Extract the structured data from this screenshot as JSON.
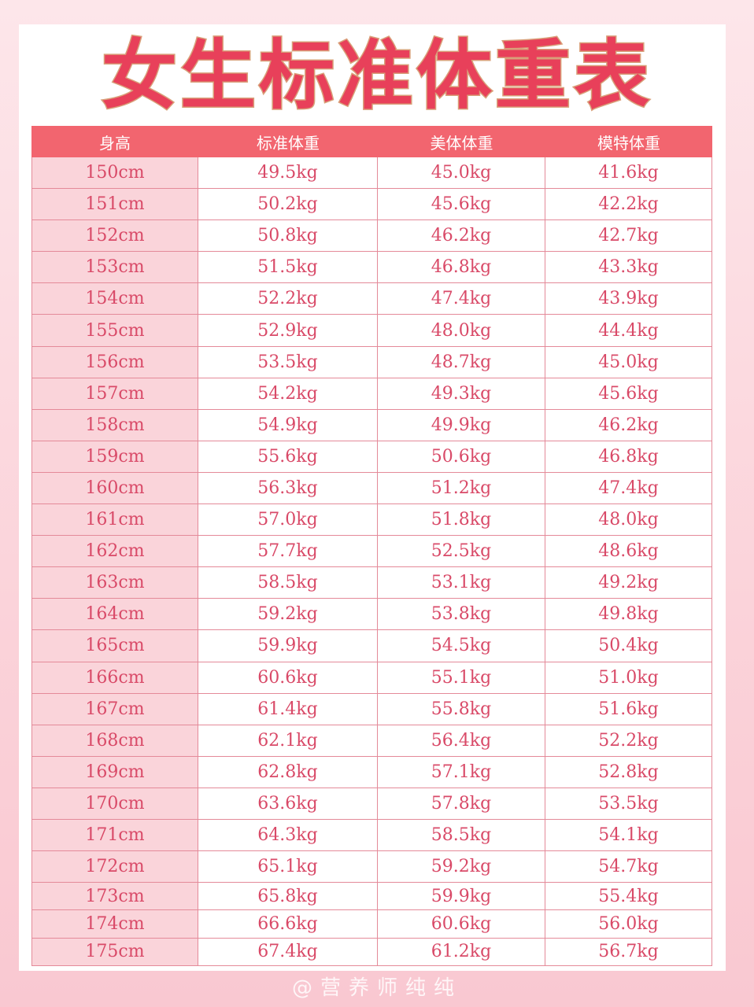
{
  "title": "女生标准体重表",
  "table": {
    "headers": [
      "身高",
      "标准体重",
      "美体体重",
      "模特体重"
    ],
    "rows": [
      [
        "150cm",
        "49.5kg",
        "45.0kg",
        "41.6kg"
      ],
      [
        "151cm",
        "50.2kg",
        "45.6kg",
        "42.2kg"
      ],
      [
        "152cm",
        "50.8kg",
        "46.2kg",
        "42.7kg"
      ],
      [
        "153cm",
        "51.5kg",
        "46.8kg",
        "43.3kg"
      ],
      [
        "154cm",
        "52.2kg",
        "47.4kg",
        "43.9kg"
      ],
      [
        "155cm",
        "52.9kg",
        "48.0kg",
        "44.4kg"
      ],
      [
        "156cm",
        "53.5kg",
        "48.7kg",
        "45.0kg"
      ],
      [
        "157cm",
        "54.2kg",
        "49.3kg",
        "45.6kg"
      ],
      [
        "158cm",
        "54.9kg",
        "49.9kg",
        "46.2kg"
      ],
      [
        "159cm",
        "55.6kg",
        "50.6kg",
        "46.8kg"
      ],
      [
        "160cm",
        "56.3kg",
        "51.2kg",
        "47.4kg"
      ],
      [
        "161cm",
        "57.0kg",
        "51.8kg",
        "48.0kg"
      ],
      [
        "162cm",
        "57.7kg",
        "52.5kg",
        "48.6kg"
      ],
      [
        "163cm",
        "58.5kg",
        "53.1kg",
        "49.2kg"
      ],
      [
        "164cm",
        "59.2kg",
        "53.8kg",
        "49.8kg"
      ],
      [
        "165cm",
        "59.9kg",
        "54.5kg",
        "50.4kg"
      ],
      [
        "166cm",
        "60.6kg",
        "55.1kg",
        "51.0kg"
      ],
      [
        "167cm",
        "61.4kg",
        "55.8kg",
        "51.6kg"
      ],
      [
        "168cm",
        "62.1kg",
        "56.4kg",
        "52.2kg"
      ],
      [
        "169cm",
        "62.8kg",
        "57.1kg",
        "52.8kg"
      ],
      [
        "170cm",
        "63.6kg",
        "57.8kg",
        "53.5kg"
      ],
      [
        "171cm",
        "64.3kg",
        "58.5kg",
        "54.1kg"
      ],
      [
        "172cm",
        "65.1kg",
        "59.2kg",
        "54.7kg"
      ],
      [
        "173cm",
        "65.8kg",
        "59.9kg",
        "55.4kg"
      ],
      [
        "174cm",
        "66.6kg",
        "60.6kg",
        "56.0kg"
      ],
      [
        "175cm",
        "67.4kg",
        "61.2kg",
        "56.7kg"
      ]
    ]
  },
  "watermark": "@营养师纯纯",
  "colors": {
    "title_fill": "#e8405a",
    "title_stroke": "#d9a07a",
    "header_bg": "#f2656f",
    "first_col_bg": "#fad4da",
    "cell_text": "#d94a68",
    "border": "#e48a99"
  }
}
